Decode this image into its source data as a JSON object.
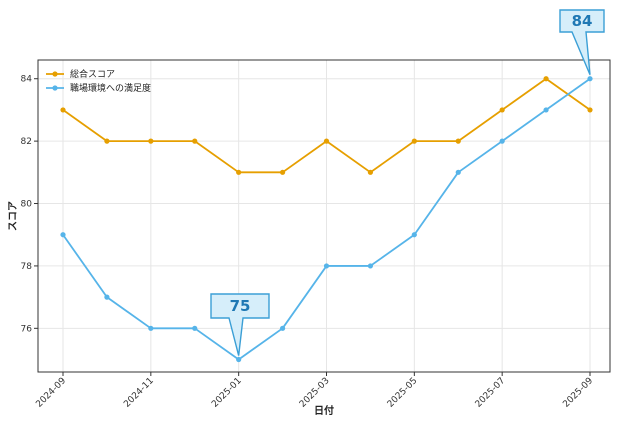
{
  "chart_data": {
    "type": "line",
    "x": [
      "2024-09",
      "2024-10",
      "2024-11",
      "2024-12",
      "2025-01",
      "2025-02",
      "2025-03",
      "2025-04",
      "2025-05",
      "2025-06",
      "2025-07",
      "2025-08",
      "2025-09"
    ],
    "x_tick_labels": [
      "2024-09",
      "2024-11",
      "2025-01",
      "2025-03",
      "2025-05",
      "2025-07",
      "2025-09"
    ],
    "series": [
      {
        "name": "総合スコア",
        "color": "#E69F00",
        "values": [
          83,
          82,
          82,
          82,
          81,
          81,
          82,
          81,
          82,
          82,
          83,
          84,
          83
        ]
      },
      {
        "name": "職場環境への満足度",
        "color": "#56B4E9",
        "values": [
          79,
          77,
          76,
          76,
          75,
          76,
          78,
          78,
          79,
          81,
          82,
          83,
          84
        ]
      }
    ],
    "y_ticks": [
      "76",
      "78",
      "80",
      "82",
      "84"
    ],
    "ylim": [
      74.6,
      84.6
    ],
    "xlabel": "日付",
    "ylabel": "スコア",
    "grid": true,
    "legend_position": "top-left",
    "annotations": [
      {
        "text": "84",
        "x": "2025-09",
        "series": 1
      },
      {
        "text": "75",
        "x": "2025-01",
        "series": 1
      }
    ]
  }
}
